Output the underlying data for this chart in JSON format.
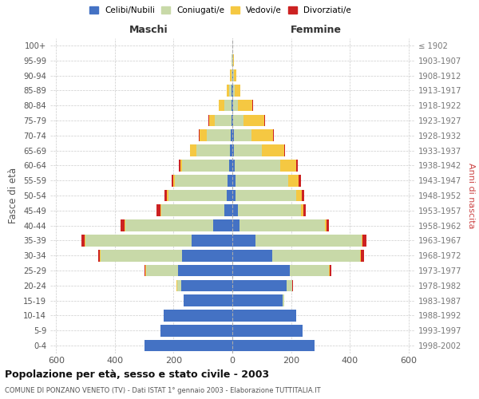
{
  "age_groups": [
    "0-4",
    "5-9",
    "10-14",
    "15-19",
    "20-24",
    "25-29",
    "30-34",
    "35-39",
    "40-44",
    "45-49",
    "50-54",
    "55-59",
    "60-64",
    "65-69",
    "70-74",
    "75-79",
    "80-84",
    "85-89",
    "90-94",
    "95-99",
    "100+"
  ],
  "birth_years": [
    "1998-2002",
    "1993-1997",
    "1988-1992",
    "1983-1987",
    "1978-1982",
    "1973-1977",
    "1968-1972",
    "1963-1967",
    "1958-1962",
    "1953-1957",
    "1948-1952",
    "1943-1947",
    "1938-1942",
    "1933-1937",
    "1928-1932",
    "1923-1927",
    "1918-1922",
    "1913-1917",
    "1908-1912",
    "1903-1907",
    "≤ 1902"
  ],
  "colors": {
    "celibi": "#4472c4",
    "coniugati": "#c8d9a8",
    "vedovi": "#f5c842",
    "divorziati": "#cc2222"
  },
  "males": {
    "celibi": [
      300,
      245,
      235,
      165,
      175,
      185,
      170,
      140,
      65,
      28,
      18,
      15,
      12,
      8,
      6,
      4,
      3,
      2,
      1,
      1,
      0
    ],
    "coniugati": [
      0,
      0,
      0,
      0,
      12,
      110,
      280,
      360,
      300,
      215,
      200,
      180,
      158,
      115,
      80,
      55,
      25,
      8,
      3,
      1,
      0
    ],
    "vedovi": [
      0,
      0,
      0,
      0,
      2,
      2,
      2,
      2,
      3,
      3,
      4,
      5,
      8,
      20,
      25,
      20,
      18,
      10,
      4,
      1,
      0
    ],
    "divorziati": [
      0,
      0,
      0,
      0,
      0,
      2,
      5,
      12,
      12,
      12,
      10,
      8,
      5,
      2,
      2,
      2,
      0,
      0,
      0,
      0,
      0
    ]
  },
  "females": {
    "nubili": [
      280,
      238,
      218,
      172,
      185,
      195,
      135,
      80,
      25,
      18,
      12,
      10,
      8,
      6,
      5,
      4,
      4,
      3,
      2,
      1,
      0
    ],
    "coniugate": [
      0,
      0,
      0,
      5,
      20,
      135,
      300,
      360,
      290,
      215,
      205,
      180,
      155,
      95,
      60,
      35,
      15,
      5,
      3,
      1,
      0
    ],
    "vedove": [
      0,
      0,
      0,
      0,
      0,
      2,
      2,
      3,
      5,
      10,
      20,
      35,
      55,
      75,
      75,
      70,
      50,
      20,
      8,
      3,
      1
    ],
    "divorziate": [
      0,
      0,
      0,
      0,
      2,
      5,
      12,
      15,
      10,
      8,
      8,
      8,
      5,
      3,
      2,
      2,
      1,
      0,
      0,
      0,
      0
    ]
  },
  "xlim": 620,
  "title": "Popolazione per età, sesso e stato civile - 2003",
  "subtitle": "COMUNE DI PONZANO VENETO (TV) - Dati ISTAT 1° gennaio 2003 - Elaborazione TUTTITALIA.IT",
  "xlabel_left": "Maschi",
  "xlabel_right": "Femmine",
  "ylabel_left": "Fasce di età",
  "ylabel_right": "Anni di nascita",
  "legend_labels": [
    "Celibi/Nubili",
    "Coniugati/e",
    "Vedovi/e",
    "Divorziati/e"
  ],
  "background_color": "#ffffff",
  "grid_color": "#cccccc"
}
